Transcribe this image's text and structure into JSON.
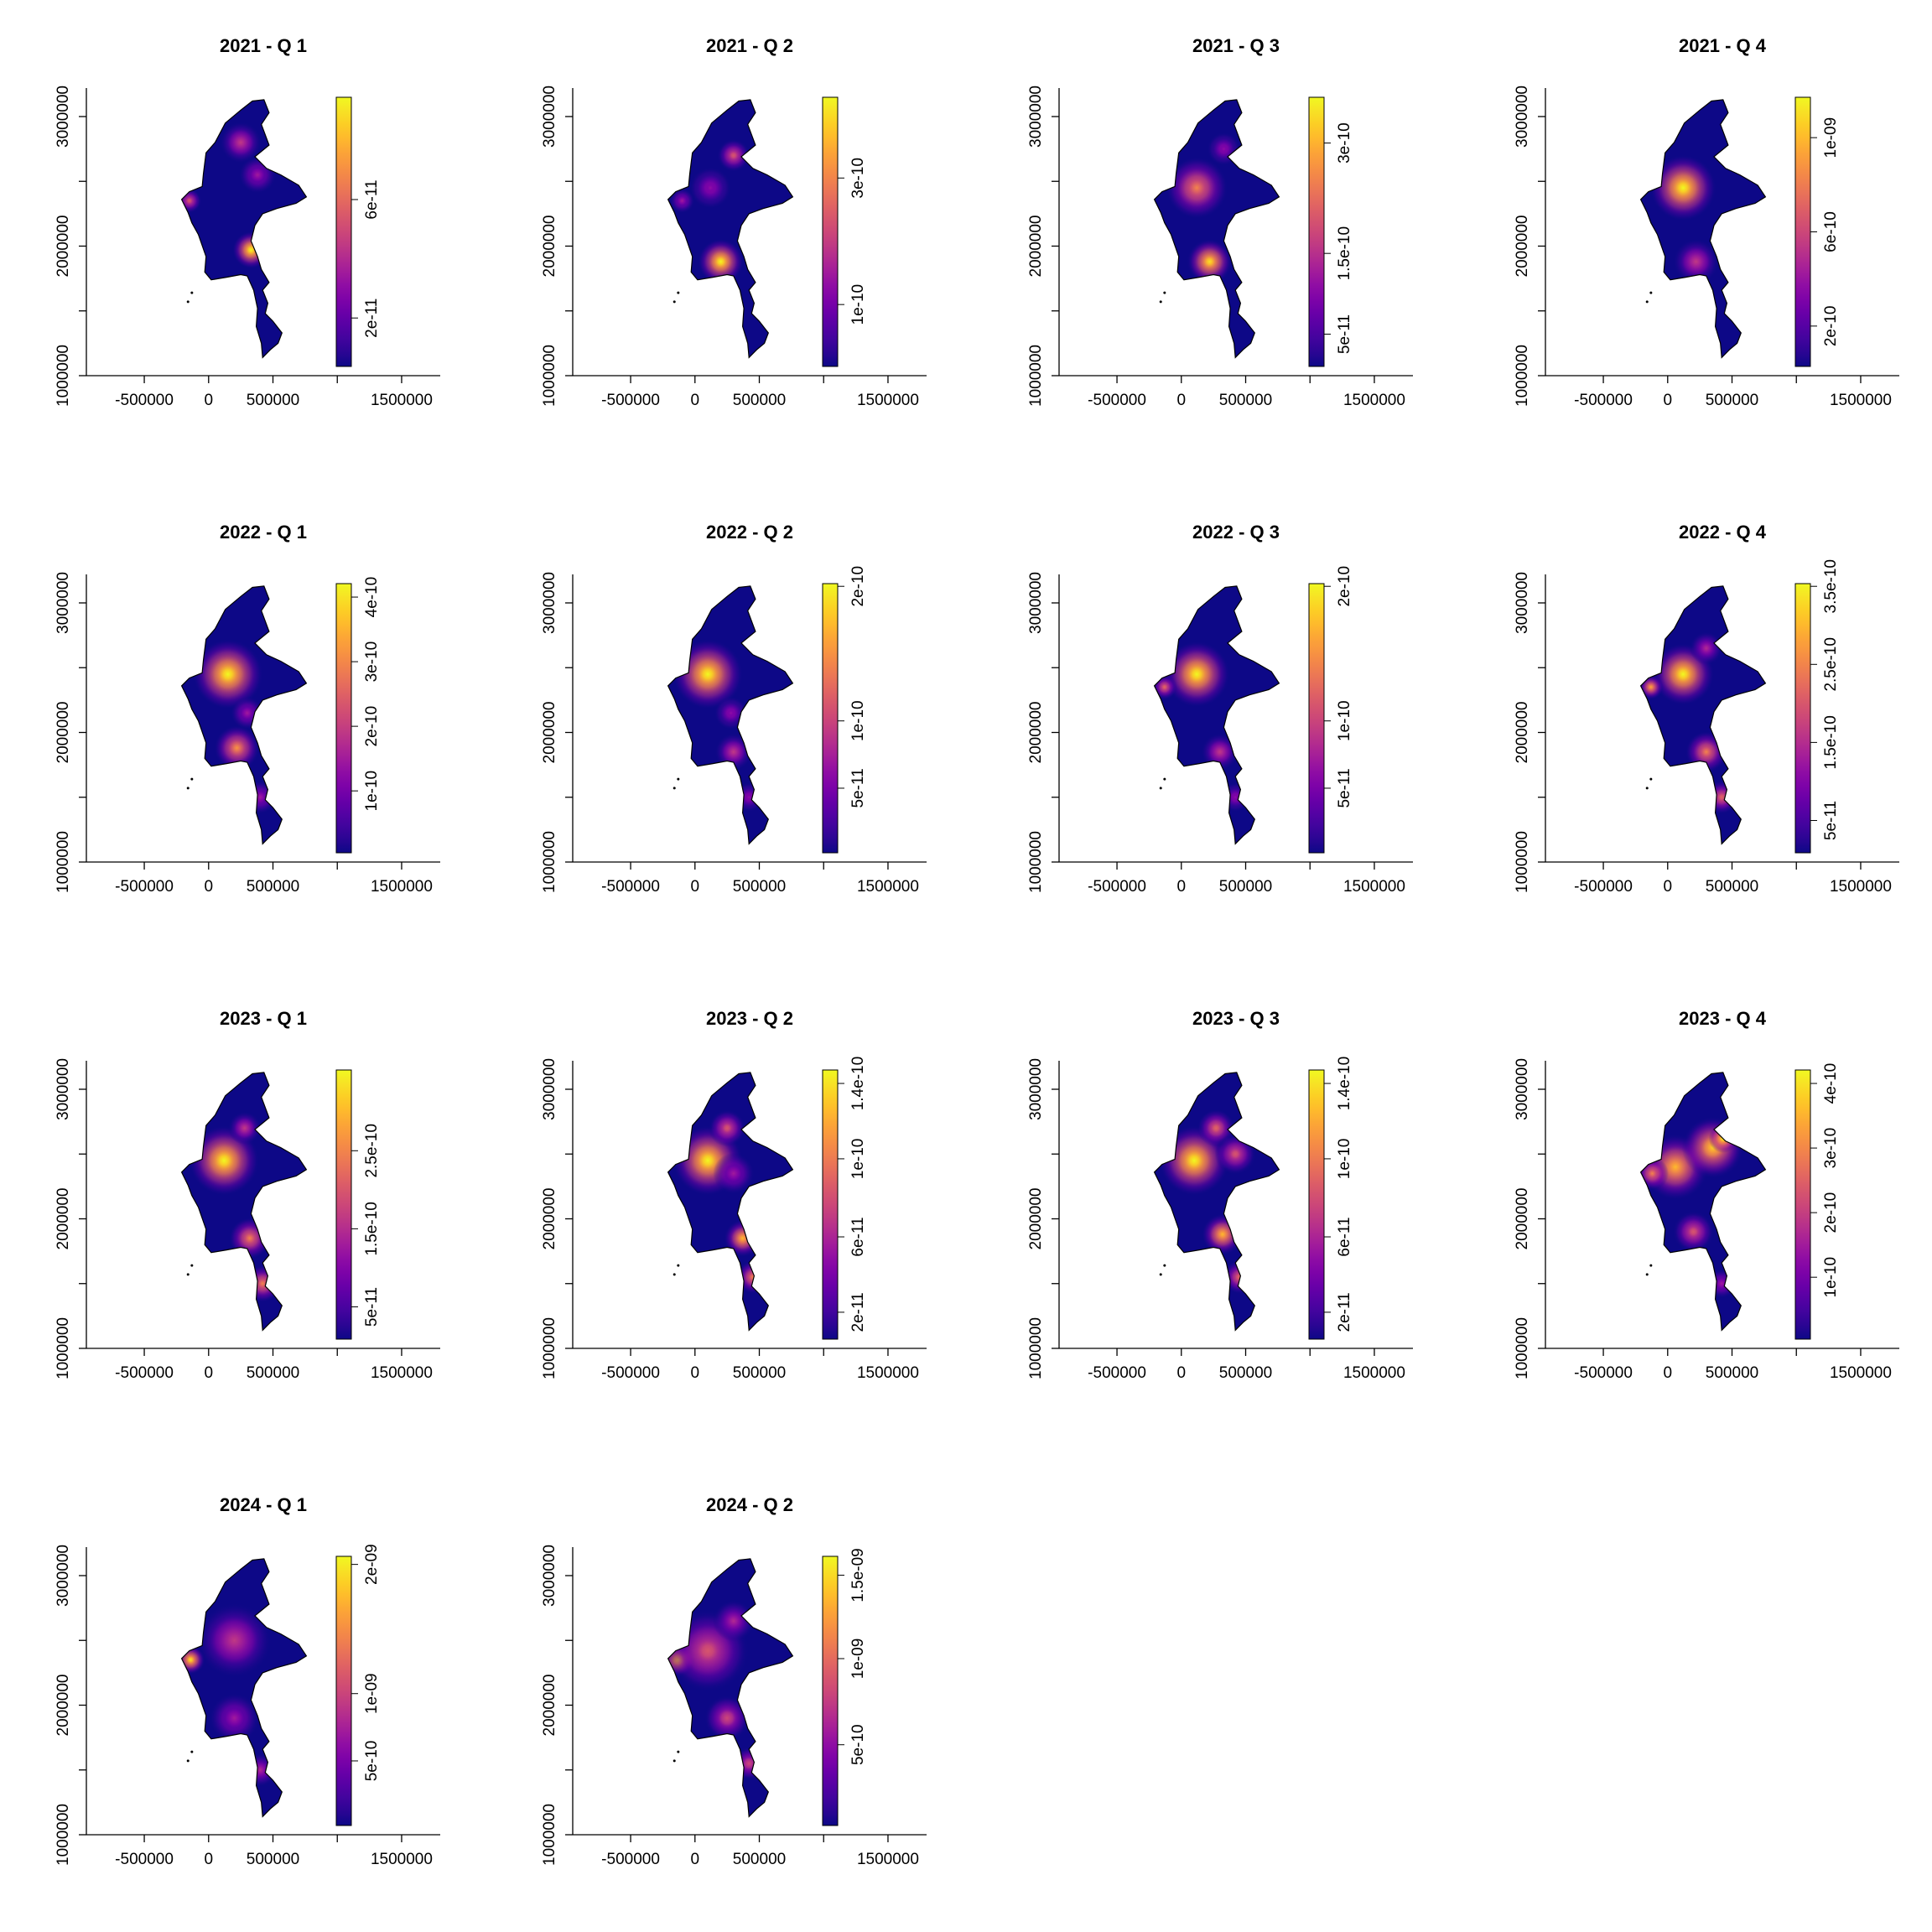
{
  "chart_data": {
    "type": "heatmap",
    "layout": {
      "rows": 4,
      "cols": 4
    },
    "x_ticks": [
      -500000,
      0,
      500000,
      1500000
    ],
    "x_tick_labels": [
      "-500000",
      "0",
      "500000",
      "1500000"
    ],
    "x_extra_tick": 1000000,
    "xlim": [
      -950000,
      1800000
    ],
    "y_ticks": [
      1000000,
      2000000,
      3000000
    ],
    "y_tick_labels": [
      "1000000",
      "2000000",
      "3000000"
    ],
    "y_minor_tick": 1500000,
    "y_major_mid": 2500000,
    "ylim": [
      1000000,
      3220000
    ],
    "palette": [
      "#0d0887",
      "#2a0593",
      "#41049d",
      "#5601a4",
      "#6a00a8",
      "#7e03a8",
      "#8f0da4",
      "#a11b9b",
      "#b12a90",
      "#bf3984",
      "#cc4778",
      "#d6556d",
      "#e16462",
      "#ea7457",
      "#f2844b",
      "#f89540",
      "#fca636",
      "#feba2c",
      "#fcce25",
      "#f7e225",
      "#f0f921"
    ],
    "panels": [
      {
        "title": "2021 - Q 1",
        "legend_ticks": [
          {
            "label": "2e-11",
            "pos": 0.18
          },
          {
            "label": "6e-11",
            "pos": 0.62
          }
        ],
        "hotspots": [
          {
            "x": 330000,
            "y": 1970000,
            "r": 90000,
            "v": 1.0
          },
          {
            "x": 250000,
            "y": 2800000,
            "r": 100000,
            "v": 0.45
          },
          {
            "x": 380000,
            "y": 2550000,
            "r": 90000,
            "v": 0.35
          },
          {
            "x": -150000,
            "y": 2350000,
            "r": 60000,
            "v": 0.55
          }
        ]
      },
      {
        "title": "2021 - Q 2",
        "legend_ticks": [
          {
            "label": "1e-10",
            "pos": 0.23
          },
          {
            "label": "3e-10",
            "pos": 0.7
          }
        ],
        "hotspots": [
          {
            "x": 200000,
            "y": 1880000,
            "r": 110000,
            "v": 1.0
          },
          {
            "x": 300000,
            "y": 2700000,
            "r": 80000,
            "v": 0.55
          },
          {
            "x": 120000,
            "y": 2450000,
            "r": 100000,
            "v": 0.3
          },
          {
            "x": -100000,
            "y": 2350000,
            "r": 60000,
            "v": 0.35
          }
        ]
      },
      {
        "title": "2021 - Q 3",
        "legend_ticks": [
          {
            "label": "5e-11",
            "pos": 0.12
          },
          {
            "label": "1.5e-10",
            "pos": 0.42
          },
          {
            "label": "3e-10",
            "pos": 0.83
          }
        ],
        "hotspots": [
          {
            "x": 120000,
            "y": 2450000,
            "r": 150000,
            "v": 0.7
          },
          {
            "x": 220000,
            "y": 1880000,
            "r": 110000,
            "v": 0.95
          },
          {
            "x": 330000,
            "y": 2750000,
            "r": 80000,
            "v": 0.3
          }
        ]
      },
      {
        "title": "2021 - Q 4",
        "legend_ticks": [
          {
            "label": "2e-10",
            "pos": 0.15
          },
          {
            "label": "6e-10",
            "pos": 0.5
          },
          {
            "label": "1e-09",
            "pos": 0.85
          }
        ],
        "hotspots": [
          {
            "x": 120000,
            "y": 2450000,
            "r": 160000,
            "v": 1.0
          },
          {
            "x": 220000,
            "y": 1880000,
            "r": 110000,
            "v": 0.45
          }
        ]
      },
      {
        "title": "2022 - Q 1",
        "legend_ticks": [
          {
            "label": "1e-10",
            "pos": 0.23
          },
          {
            "label": "2e-10",
            "pos": 0.47
          },
          {
            "label": "3e-10",
            "pos": 0.71
          },
          {
            "label": "4e-10",
            "pos": 0.95
          }
        ],
        "hotspots": [
          {
            "x": 150000,
            "y": 2450000,
            "r": 170000,
            "v": 1.0
          },
          {
            "x": 220000,
            "y": 1880000,
            "r": 110000,
            "v": 0.75
          },
          {
            "x": 300000,
            "y": 2150000,
            "r": 80000,
            "v": 0.35
          },
          {
            "x": 400000,
            "y": 1500000,
            "r": 80000,
            "v": 0.35
          }
        ]
      },
      {
        "title": "2022 - Q 2",
        "legend_ticks": [
          {
            "label": "5e-11",
            "pos": 0.24
          },
          {
            "label": "1e-10",
            "pos": 0.49
          },
          {
            "label": "2e-10",
            "pos": 0.99
          }
        ],
        "hotspots": [
          {
            "x": 100000,
            "y": 2450000,
            "r": 170000,
            "v": 1.0
          },
          {
            "x": 280000,
            "y": 2150000,
            "r": 80000,
            "v": 0.3
          },
          {
            "x": 300000,
            "y": 1850000,
            "r": 90000,
            "v": 0.45
          },
          {
            "x": 420000,
            "y": 1500000,
            "r": 70000,
            "v": 0.3
          }
        ]
      },
      {
        "title": "2022 - Q 3",
        "legend_ticks": [
          {
            "label": "5e-11",
            "pos": 0.24
          },
          {
            "label": "1e-10",
            "pos": 0.49
          },
          {
            "label": "2e-10",
            "pos": 0.99
          }
        ],
        "hotspots": [
          {
            "x": 120000,
            "y": 2450000,
            "r": 160000,
            "v": 1.0
          },
          {
            "x": -130000,
            "y": 2350000,
            "r": 60000,
            "v": 0.6
          },
          {
            "x": 300000,
            "y": 1850000,
            "r": 90000,
            "v": 0.45
          },
          {
            "x": 420000,
            "y": 1500000,
            "r": 70000,
            "v": 0.3
          }
        ]
      },
      {
        "title": "2022 - Q 4",
        "legend_ticks": [
          {
            "label": "5e-11",
            "pos": 0.12
          },
          {
            "label": "1.5e-10",
            "pos": 0.41
          },
          {
            "label": "2.5e-10",
            "pos": 0.7
          },
          {
            "label": "3.5e-10",
            "pos": 0.99
          }
        ],
        "hotspots": [
          {
            "x": 120000,
            "y": 2450000,
            "r": 150000,
            "v": 1.0
          },
          {
            "x": -130000,
            "y": 2350000,
            "r": 60000,
            "v": 0.8
          },
          {
            "x": 300000,
            "y": 2650000,
            "r": 80000,
            "v": 0.4
          },
          {
            "x": 300000,
            "y": 1850000,
            "r": 100000,
            "v": 0.7
          },
          {
            "x": 420000,
            "y": 1500000,
            "r": 80000,
            "v": 0.6
          }
        ]
      },
      {
        "title": "2023 - Q 1",
        "legend_ticks": [
          {
            "label": "5e-11",
            "pos": 0.12
          },
          {
            "label": "1.5e-10",
            "pos": 0.41
          },
          {
            "label": "2.5e-10",
            "pos": 0.7
          }
        ],
        "hotspots": [
          {
            "x": 120000,
            "y": 2450000,
            "r": 170000,
            "v": 1.0
          },
          {
            "x": 280000,
            "y": 2700000,
            "r": 80000,
            "v": 0.45
          },
          {
            "x": 320000,
            "y": 1850000,
            "r": 100000,
            "v": 0.7
          },
          {
            "x": 420000,
            "y": 1500000,
            "r": 90000,
            "v": 0.7
          }
        ]
      },
      {
        "title": "2023 - Q 2",
        "legend_ticks": [
          {
            "label": "2e-11",
            "pos": 0.1
          },
          {
            "label": "6e-11",
            "pos": 0.38
          },
          {
            "label": "1e-10",
            "pos": 0.67
          },
          {
            "label": "1.4e-10",
            "pos": 0.95
          }
        ],
        "hotspots": [
          {
            "x": 100000,
            "y": 2450000,
            "r": 170000,
            "v": 1.0
          },
          {
            "x": 250000,
            "y": 2700000,
            "r": 90000,
            "v": 0.55
          },
          {
            "x": 300000,
            "y": 2350000,
            "r": 100000,
            "v": 0.35
          },
          {
            "x": 370000,
            "y": 1850000,
            "r": 90000,
            "v": 0.85
          },
          {
            "x": 450000,
            "y": 1550000,
            "r": 80000,
            "v": 0.7
          }
        ]
      },
      {
        "title": "2023 - Q 3",
        "legend_ticks": [
          {
            "label": "2e-11",
            "pos": 0.1
          },
          {
            "label": "6e-11",
            "pos": 0.38
          },
          {
            "label": "1e-10",
            "pos": 0.67
          },
          {
            "label": "1.4e-10",
            "pos": 0.95
          }
        ],
        "hotspots": [
          {
            "x": 100000,
            "y": 2450000,
            "r": 170000,
            "v": 1.0
          },
          {
            "x": 270000,
            "y": 2700000,
            "r": 90000,
            "v": 0.6
          },
          {
            "x": 420000,
            "y": 2500000,
            "r": 100000,
            "v": 0.55
          },
          {
            "x": 320000,
            "y": 1880000,
            "r": 100000,
            "v": 0.85
          },
          {
            "x": 450000,
            "y": 1550000,
            "r": 80000,
            "v": 0.6
          }
        ]
      },
      {
        "title": "2023 - Q 4",
        "legend_ticks": [
          {
            "label": "1e-10",
            "pos": 0.23
          },
          {
            "label": "2e-10",
            "pos": 0.47
          },
          {
            "label": "3e-10",
            "pos": 0.71
          },
          {
            "label": "4e-10",
            "pos": 0.95
          }
        ],
        "hotspots": [
          {
            "x": 60000,
            "y": 2400000,
            "r": 160000,
            "v": 0.85
          },
          {
            "x": 350000,
            "y": 2550000,
            "r": 150000,
            "v": 0.9
          },
          {
            "x": 430000,
            "y": 2620000,
            "r": 70000,
            "v": 1.0
          },
          {
            "x": -120000,
            "y": 2350000,
            "r": 80000,
            "v": 0.7
          },
          {
            "x": 200000,
            "y": 1900000,
            "r": 100000,
            "v": 0.55
          },
          {
            "x": 420000,
            "y": 1500000,
            "r": 70000,
            "v": 0.35
          }
        ]
      },
      {
        "title": "2024 - Q 1",
        "legend_ticks": [
          {
            "label": "5e-10",
            "pos": 0.24
          },
          {
            "label": "1e-09",
            "pos": 0.49
          },
          {
            "label": "2e-09",
            "pos": 0.97
          }
        ],
        "hotspots": [
          {
            "x": -140000,
            "y": 2350000,
            "r": 70000,
            "v": 0.95
          },
          {
            "x": 200000,
            "y": 2500000,
            "r": 180000,
            "v": 0.45
          },
          {
            "x": 200000,
            "y": 1900000,
            "r": 120000,
            "v": 0.35
          },
          {
            "x": 400000,
            "y": 1500000,
            "r": 80000,
            "v": 0.4
          }
        ]
      },
      {
        "title": "2024 - Q 2",
        "legend_ticks": [
          {
            "label": "5e-10",
            "pos": 0.3
          },
          {
            "label": "1e-09",
            "pos": 0.62
          },
          {
            "label": "1.5e-09",
            "pos": 0.93
          }
        ],
        "hotspots": [
          {
            "x": -130000,
            "y": 2350000,
            "r": 80000,
            "v": 0.9
          },
          {
            "x": 100000,
            "y": 2420000,
            "r": 200000,
            "v": 0.55
          },
          {
            "x": 300000,
            "y": 2650000,
            "r": 100000,
            "v": 0.4
          },
          {
            "x": 250000,
            "y": 1900000,
            "r": 110000,
            "v": 0.5
          },
          {
            "x": 420000,
            "y": 1550000,
            "r": 80000,
            "v": 0.5
          }
        ]
      }
    ]
  }
}
